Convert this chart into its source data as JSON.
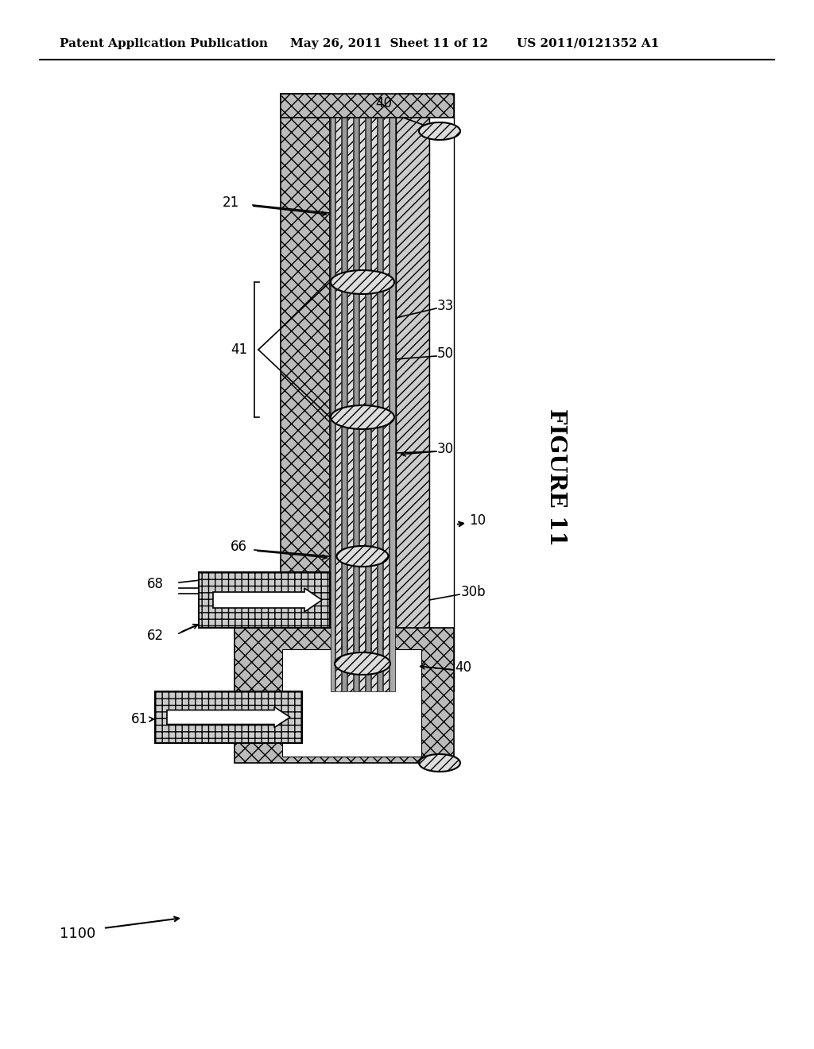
{
  "title_left": "Patent Application Publication",
  "title_mid": "May 26, 2011  Sheet 11 of 12",
  "title_right": "US 2011/0121352 A1",
  "figure_label": "FIGURE 11",
  "bg_color": "#ffffff"
}
